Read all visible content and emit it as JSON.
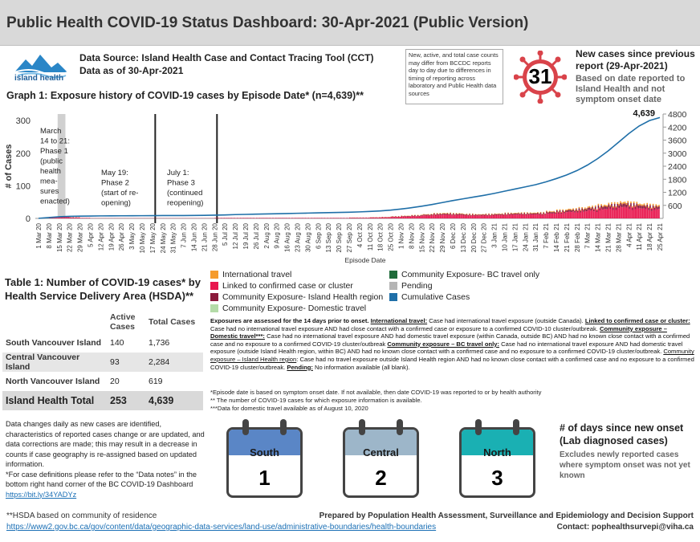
{
  "header": {
    "title": "Public Health COVID-19 Status Dashboard: 30-Apr-2021 (Public Version)"
  },
  "logo": {
    "text": "island health"
  },
  "source": {
    "line1": "Data Source: Island Health Case and Contact Tracing Tool (CCT)",
    "line2": "Data as of 30-Apr-2021"
  },
  "note_box": "New, active, and total case counts may differ from BCCDC reports day to day due to differences in timing of reporting across laboratory and Public Health data sources",
  "new_cases": {
    "count": "31",
    "line1": "New cases since previous report (29-Apr-2021)",
    "line2": "Based on date reported to Island Health and not symptom onset date"
  },
  "graph": {
    "title": "Graph 1: Exposure history of COVID-19 cases by Episode Date* (n=4,639)**"
  },
  "chart_data": {
    "type": "bar",
    "title": "Graph 1: Exposure history of COVID-19 cases by Episode Date* (n=4,639)**",
    "xlabel": "Episode Date",
    "ylabel": "# of Cases",
    "y_left_ticks": [
      "0",
      "100",
      "200",
      "300"
    ],
    "y_right_ticks": [
      "600",
      "1200",
      "1800",
      "2400",
      "3000",
      "3600",
      "4200",
      "4800"
    ],
    "ylim_left": [
      0,
      320
    ],
    "ylim_right": [
      0,
      4800
    ],
    "x_ticks": [
      "1 Mar 20",
      "8 Mar 20",
      "15 Mar 20",
      "22 Mar 20",
      "29 Mar 20",
      "5 Apr 20",
      "12 Apr 20",
      "19 Apr 20",
      "26 Apr 20",
      "3 May 20",
      "10 May 20",
      "17 May 20",
      "24 May 20",
      "31 May 20",
      "7 Jun 20",
      "14 Jun 20",
      "21 Jun 20",
      "28 Jun 20",
      "5 Jul 20",
      "12 Jul 20",
      "19 Jul 20",
      "26 Jul 20",
      "2 Aug 20",
      "9 Aug 20",
      "16 Aug 20",
      "23 Aug 20",
      "30 Aug 20",
      "6 Sep 20",
      "13 Sep 20",
      "20 Sep 20",
      "27 Sep 20",
      "4 Oct 20",
      "11 Oct 20",
      "18 Oct 20",
      "25 Oct 20",
      "1 Nov 20",
      "8 Nov 20",
      "15 Nov 20",
      "22 Nov 20",
      "29 Nov 20",
      "6 Dec 20",
      "13 Dec 20",
      "20 Dec 20",
      "27 Dec 20",
      "3 Jan 21",
      "10 Jan 21",
      "17 Jan 21",
      "24 Jan 21",
      "31 Jan 21",
      "7 Feb 21",
      "14 Feb 21",
      "21 Feb 21",
      "28 Feb 21",
      "7 Mar 21",
      "14 Mar 21",
      "21 Mar 21",
      "28 Mar 21",
      "4 Apr 21",
      "11 Apr 21",
      "18 Apr 21",
      "25 Apr 21"
    ],
    "cumulative_label": "4,639",
    "cumulative_weekly": [
      5,
      40,
      75,
      95,
      105,
      110,
      115,
      118,
      120,
      122,
      125,
      128,
      130,
      132,
      133,
      135,
      140,
      150,
      160,
      175,
      185,
      195,
      205,
      215,
      225,
      235,
      245,
      255,
      265,
      275,
      285,
      300,
      320,
      345,
      380,
      430,
      490,
      560,
      640,
      730,
      820,
      900,
      980,
      1060,
      1150,
      1250,
      1350,
      1450,
      1550,
      1680,
      1830,
      2000,
      2200,
      2450,
      2750,
      3100,
      3500,
      3900,
      4250,
      4500,
      4639
    ],
    "weekly_bars": [
      0,
      5,
      6,
      4,
      2,
      1,
      1,
      1,
      1,
      1,
      1,
      1,
      1,
      1,
      1,
      1,
      1,
      2,
      2,
      2,
      2,
      2,
      2,
      2,
      2,
      2,
      2,
      2,
      2,
      2,
      3,
      3,
      4,
      5,
      7,
      9,
      11,
      14,
      17,
      18,
      17,
      15,
      14,
      15,
      16,
      18,
      19,
      19,
      20,
      24,
      28,
      32,
      35,
      40,
      45,
      50,
      55,
      52,
      48,
      45,
      20
    ],
    "annotations": [
      "March 14 to 21: Phase 1 (public health mea-sures enacted)",
      "May 19: Phase 2 (start of re-opening)",
      "July 1: Phase 3 (continued reopening)"
    ],
    "series": [
      {
        "name": "International travel",
        "color": "#f59b2c"
      },
      {
        "name": "Linked to confirmed case or cluster",
        "color": "#e8174e"
      },
      {
        "name": "Community Exposure- Island Health region",
        "color": "#8b1a3b"
      },
      {
        "name": "Community Exposure- Domestic travel",
        "color": "#b4dba8"
      },
      {
        "name": "Community Exposure- BC travel only",
        "color": "#1f6b3a"
      },
      {
        "name": "Pending",
        "color": "#b5b5b5"
      },
      {
        "name": "Cumulative Cases",
        "color": "#1f6fa8"
      }
    ]
  },
  "table": {
    "title": "Table 1: Number of COVID-19 cases* by Health Service Delivery Area (HSDA)**",
    "col_active": "Active Cases",
    "col_total": "Total Cases",
    "rows": [
      {
        "label": "South Vancouver Island",
        "active": "140",
        "total": "1,736"
      },
      {
        "label": "Central Vancouver Island",
        "active": "93",
        "total": "2,284"
      },
      {
        "label": "North Vancouver Island",
        "active": "20",
        "total": "619"
      }
    ],
    "total": {
      "label": "Island Health Total",
      "active": "253",
      "total": "4,639"
    }
  },
  "defs": {
    "lead": "Exposures are assessed for the 14 days prior to onset.",
    "intl_label": "International travel:",
    "intl_text": " Case had international travel exposure (outside Canada). ",
    "linked_label": "Linked to confirmed case or cluster:",
    "linked_text": " Case had no international travel exposure AND had close contact with a confirmed case or exposure to a confirmed COVID-10 cluster/outbreak. ",
    "domestic_label": "Community exposure – Domestic travel***:",
    "domestic_text": " Case had no international travel exposure AND had domestic travel exposure (within Canada, outside BC) AND had no known close contact with a confirmed case and no exposure to a confirmed COVID-19 cluster/outbreak ",
    "bc_label": "Community exposure – BC travel only:",
    "bc_text": " Case had no international travel exposure AND had domestic travel exposure (outside Island Health region, within BC) AND had no known close contact with a confirmed case and no exposure to a confirmed COVID-19 cluster/outbreak. ",
    "island_label": "Community exposure – Island Health region",
    "island_text": ": Case had no travel exposure outside Island Health region AND had no known close contact with a confirmed case and no exposure to a confirmed COVID-19 cluster/outbreak. ",
    "pending_label": "Pending:",
    "pending_text": " No information available (all blank)."
  },
  "footnotes": {
    "f1": "*Episode date is based on symptom onset date. If not available, then date COVID-19 was reported to or by health authority",
    "f2": "** The number of COVID-19 cases for which exposure information is available.",
    "f3": "***Data for domestic travel available as of August 10, 2020"
  },
  "data_note": {
    "text": "Data changes daily as new cases are identified, characteristics of reported cases change or are updated, and data corrections are made; this may result in a decrease in counts if case geography is re-assigned based on updated information.\n*For case definitions please refer to the “Data notes” in the bottom right hand corner of the BC COVID-19 Dashboard ",
    "link": "https://bit.ly/34YADYz"
  },
  "calendars": [
    {
      "name": "South",
      "days": "1",
      "color": "#5a86c6"
    },
    {
      "name": "Central",
      "days": "2",
      "color": "#9db6c9"
    },
    {
      "name": "North",
      "days": "3",
      "color": "#1ab0b3"
    }
  ],
  "days_since": {
    "title": "# of days since new onset (Lab diagnosed cases)",
    "sub": "Excludes newly reported cases where symptom onset was not yet known"
  },
  "footer": {
    "hsda_note": "**HSDA based on community of residence",
    "hsda_link": "https://www2.gov.bc.ca/gov/content/data/geographic-data-services/land-use/administrative-boundaries/health-boundaries",
    "prepared": "Prepared by Population Health Assessment, Surveillance and Epidemiology and Decision Support",
    "contact": "Contact: pophealthsurvepi@viha.ca"
  }
}
